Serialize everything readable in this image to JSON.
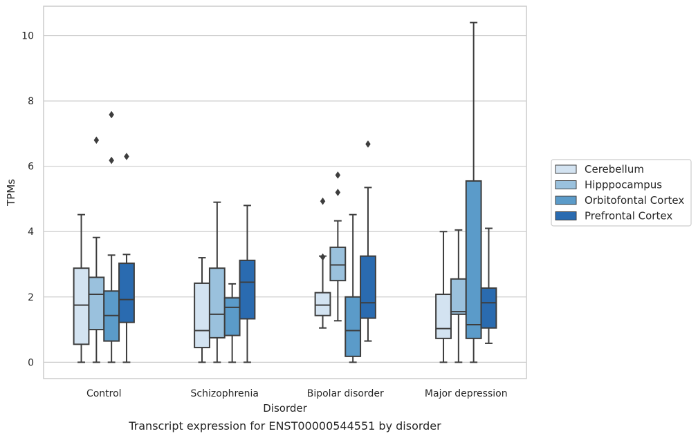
{
  "caption": "Transcript expression for ENST00000544551 by disorder",
  "colors": {
    "grid": "#cccccc",
    "frame": "#cccccc",
    "line": "#3d3d3d",
    "text": "#262626"
  },
  "chart_data": {
    "type": "box",
    "xlabel": "Disorder",
    "ylabel": "TPMs",
    "ylim": [
      -0.5,
      10.9
    ],
    "yticks": [
      0,
      2,
      4,
      6,
      8,
      10
    ],
    "grid": true,
    "legend_position": "right",
    "categories": [
      "Control",
      "Schizophrenia",
      "Bipolar disorder",
      "Major depression"
    ],
    "series": [
      {
        "name": "Cerebellum",
        "color": "#d3e3f1",
        "boxes": [
          {
            "whislo": 0,
            "q1": 0.55,
            "med": 1.75,
            "q3": 2.88,
            "whishi": 4.52,
            "fliers": []
          },
          {
            "whislo": 0,
            "q1": 0.45,
            "med": 0.97,
            "q3": 2.42,
            "whishi": 3.2,
            "fliers": []
          },
          {
            "whislo": 1.05,
            "q1": 1.43,
            "med": 1.75,
            "q3": 2.13,
            "whishi": 3.25,
            "fliers": [
              3.22,
              4.93
            ]
          },
          {
            "whislo": 0,
            "q1": 0.73,
            "med": 1.03,
            "q3": 2.08,
            "whishi": 4.0,
            "fliers": []
          }
        ]
      },
      {
        "name": "Hipppocampus",
        "color": "#9ac1dd",
        "boxes": [
          {
            "whislo": 0,
            "q1": 1.0,
            "med": 2.08,
            "q3": 2.6,
            "whishi": 3.82,
            "fliers": [
              6.8
            ]
          },
          {
            "whislo": 0,
            "q1": 0.75,
            "med": 1.47,
            "q3": 2.88,
            "whishi": 4.9,
            "fliers": []
          },
          {
            "whislo": 1.27,
            "q1": 2.5,
            "med": 2.98,
            "q3": 3.52,
            "whishi": 4.33,
            "fliers": [
              5.2,
              5.73
            ]
          },
          {
            "whislo": 0,
            "q1": 1.47,
            "med": 1.55,
            "q3": 2.55,
            "whishi": 4.05,
            "fliers": []
          }
        ]
      },
      {
        "name": "Orbitofontal Cortex",
        "color": "#5b9bc9",
        "boxes": [
          {
            "whislo": 0,
            "q1": 0.65,
            "med": 1.43,
            "q3": 2.18,
            "whishi": 3.28,
            "fliers": [
              6.18,
              7.58
            ]
          },
          {
            "whislo": 0,
            "q1": 0.82,
            "med": 1.68,
            "q3": 1.97,
            "whishi": 2.4,
            "fliers": []
          },
          {
            "whislo": 0,
            "q1": 0.18,
            "med": 0.97,
            "q3": 2.0,
            "whishi": 4.52,
            "fliers": []
          },
          {
            "whislo": 0,
            "q1": 0.73,
            "med": 1.15,
            "q3": 5.55,
            "whishi": 10.4,
            "fliers": []
          }
        ]
      },
      {
        "name": "Prefrontal Cortex",
        "color": "#2a6bb0",
        "boxes": [
          {
            "whislo": 0,
            "q1": 1.22,
            "med": 1.92,
            "q3": 3.03,
            "whishi": 3.3,
            "fliers": [
              6.3
            ]
          },
          {
            "whislo": 0,
            "q1": 1.33,
            "med": 2.45,
            "q3": 3.12,
            "whishi": 4.8,
            "fliers": []
          },
          {
            "whislo": 0.65,
            "q1": 1.35,
            "med": 1.82,
            "q3": 3.25,
            "whishi": 5.35,
            "fliers": [
              6.68
            ]
          },
          {
            "whislo": 0.58,
            "q1": 1.05,
            "med": 1.82,
            "q3": 2.27,
            "whishi": 4.1,
            "fliers": []
          }
        ]
      }
    ]
  }
}
